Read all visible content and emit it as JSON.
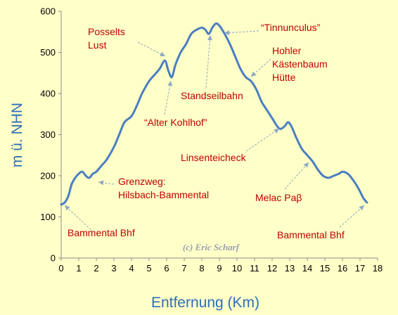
{
  "chart_data": {
    "type": "line",
    "xlabel": "Entfernung (Km)",
    "ylabel": "m ü. NHN",
    "xlim": [
      0,
      18
    ],
    "ylim": [
      0,
      600
    ],
    "x_ticks": [
      "0",
      "1",
      "2",
      "3",
      "4",
      "5",
      "6",
      "7",
      "8",
      "9",
      "10",
      "11",
      "12",
      "13",
      "14",
      "15",
      "16",
      "17",
      "18"
    ],
    "y_ticks": [
      "0",
      "100",
      "200",
      "300",
      "400",
      "500",
      "600"
    ],
    "line_color": "#4a7ec2",
    "grid": false,
    "series": [
      {
        "x": [
          0,
          0.2,
          0.4,
          0.6,
          0.8,
          1.0,
          1.2,
          1.4,
          1.6,
          1.8,
          2.0,
          2.3,
          2.6,
          3.0,
          3.3,
          3.6,
          4.0,
          4.3,
          4.6,
          5.0,
          5.3,
          5.6,
          5.9,
          6.1,
          6.3,
          6.5,
          6.8,
          7.1,
          7.4,
          7.7,
          8.0,
          8.2,
          8.4,
          8.6,
          8.8,
          9.0,
          9.3,
          9.6,
          9.9,
          10.2,
          10.5,
          10.8,
          11.1,
          11.4,
          11.7,
          12.0,
          12.4,
          12.7,
          12.9,
          13.1,
          13.4,
          13.7,
          14.0,
          14.3,
          14.6,
          14.9,
          15.2,
          15.5,
          15.8,
          16.0,
          16.3,
          16.6,
          16.9,
          17.2,
          17.4
        ],
        "y": [
          130,
          135,
          150,
          180,
          195,
          205,
          210,
          200,
          195,
          205,
          210,
          225,
          240,
          270,
          300,
          330,
          345,
          370,
          400,
          430,
          445,
          460,
          480,
          455,
          440,
          470,
          500,
          520,
          545,
          555,
          560,
          555,
          545,
          560,
          570,
          565,
          545,
          520,
          490,
          460,
          440,
          430,
          410,
          380,
          360,
          340,
          315,
          320,
          330,
          320,
          290,
          265,
          250,
          235,
          215,
          200,
          195,
          200,
          205,
          210,
          205,
          190,
          170,
          145,
          135
        ]
      }
    ],
    "annotations": [
      {
        "id": "bammental-left",
        "lines": [
          "Bammental Bhf"
        ]
      },
      {
        "id": "grenzweg",
        "lines": [
          "Grenzweg:",
          "Hilsbach-Bammental"
        ]
      },
      {
        "id": "posselts",
        "lines": [
          "Posselts",
          "Lust"
        ]
      },
      {
        "id": "kohlhof",
        "lines": [
          "“Alter Kohlhof”"
        ]
      },
      {
        "id": "standseilbahn",
        "lines": [
          "Standseilbahn"
        ]
      },
      {
        "id": "tinnunculus",
        "lines": [
          "“Tinnunculus”"
        ]
      },
      {
        "id": "hohler",
        "lines": [
          "Hohler",
          "Kästenbaum",
          "Hütte"
        ]
      },
      {
        "id": "linsenteicheck",
        "lines": [
          "Linsenteicheck"
        ]
      },
      {
        "id": "melac",
        "lines": [
          "Melac Paβ"
        ]
      },
      {
        "id": "bammental-right",
        "lines": [
          "Bammental Bhf"
        ]
      }
    ],
    "watermark": "(c) Eric Scharf"
  }
}
